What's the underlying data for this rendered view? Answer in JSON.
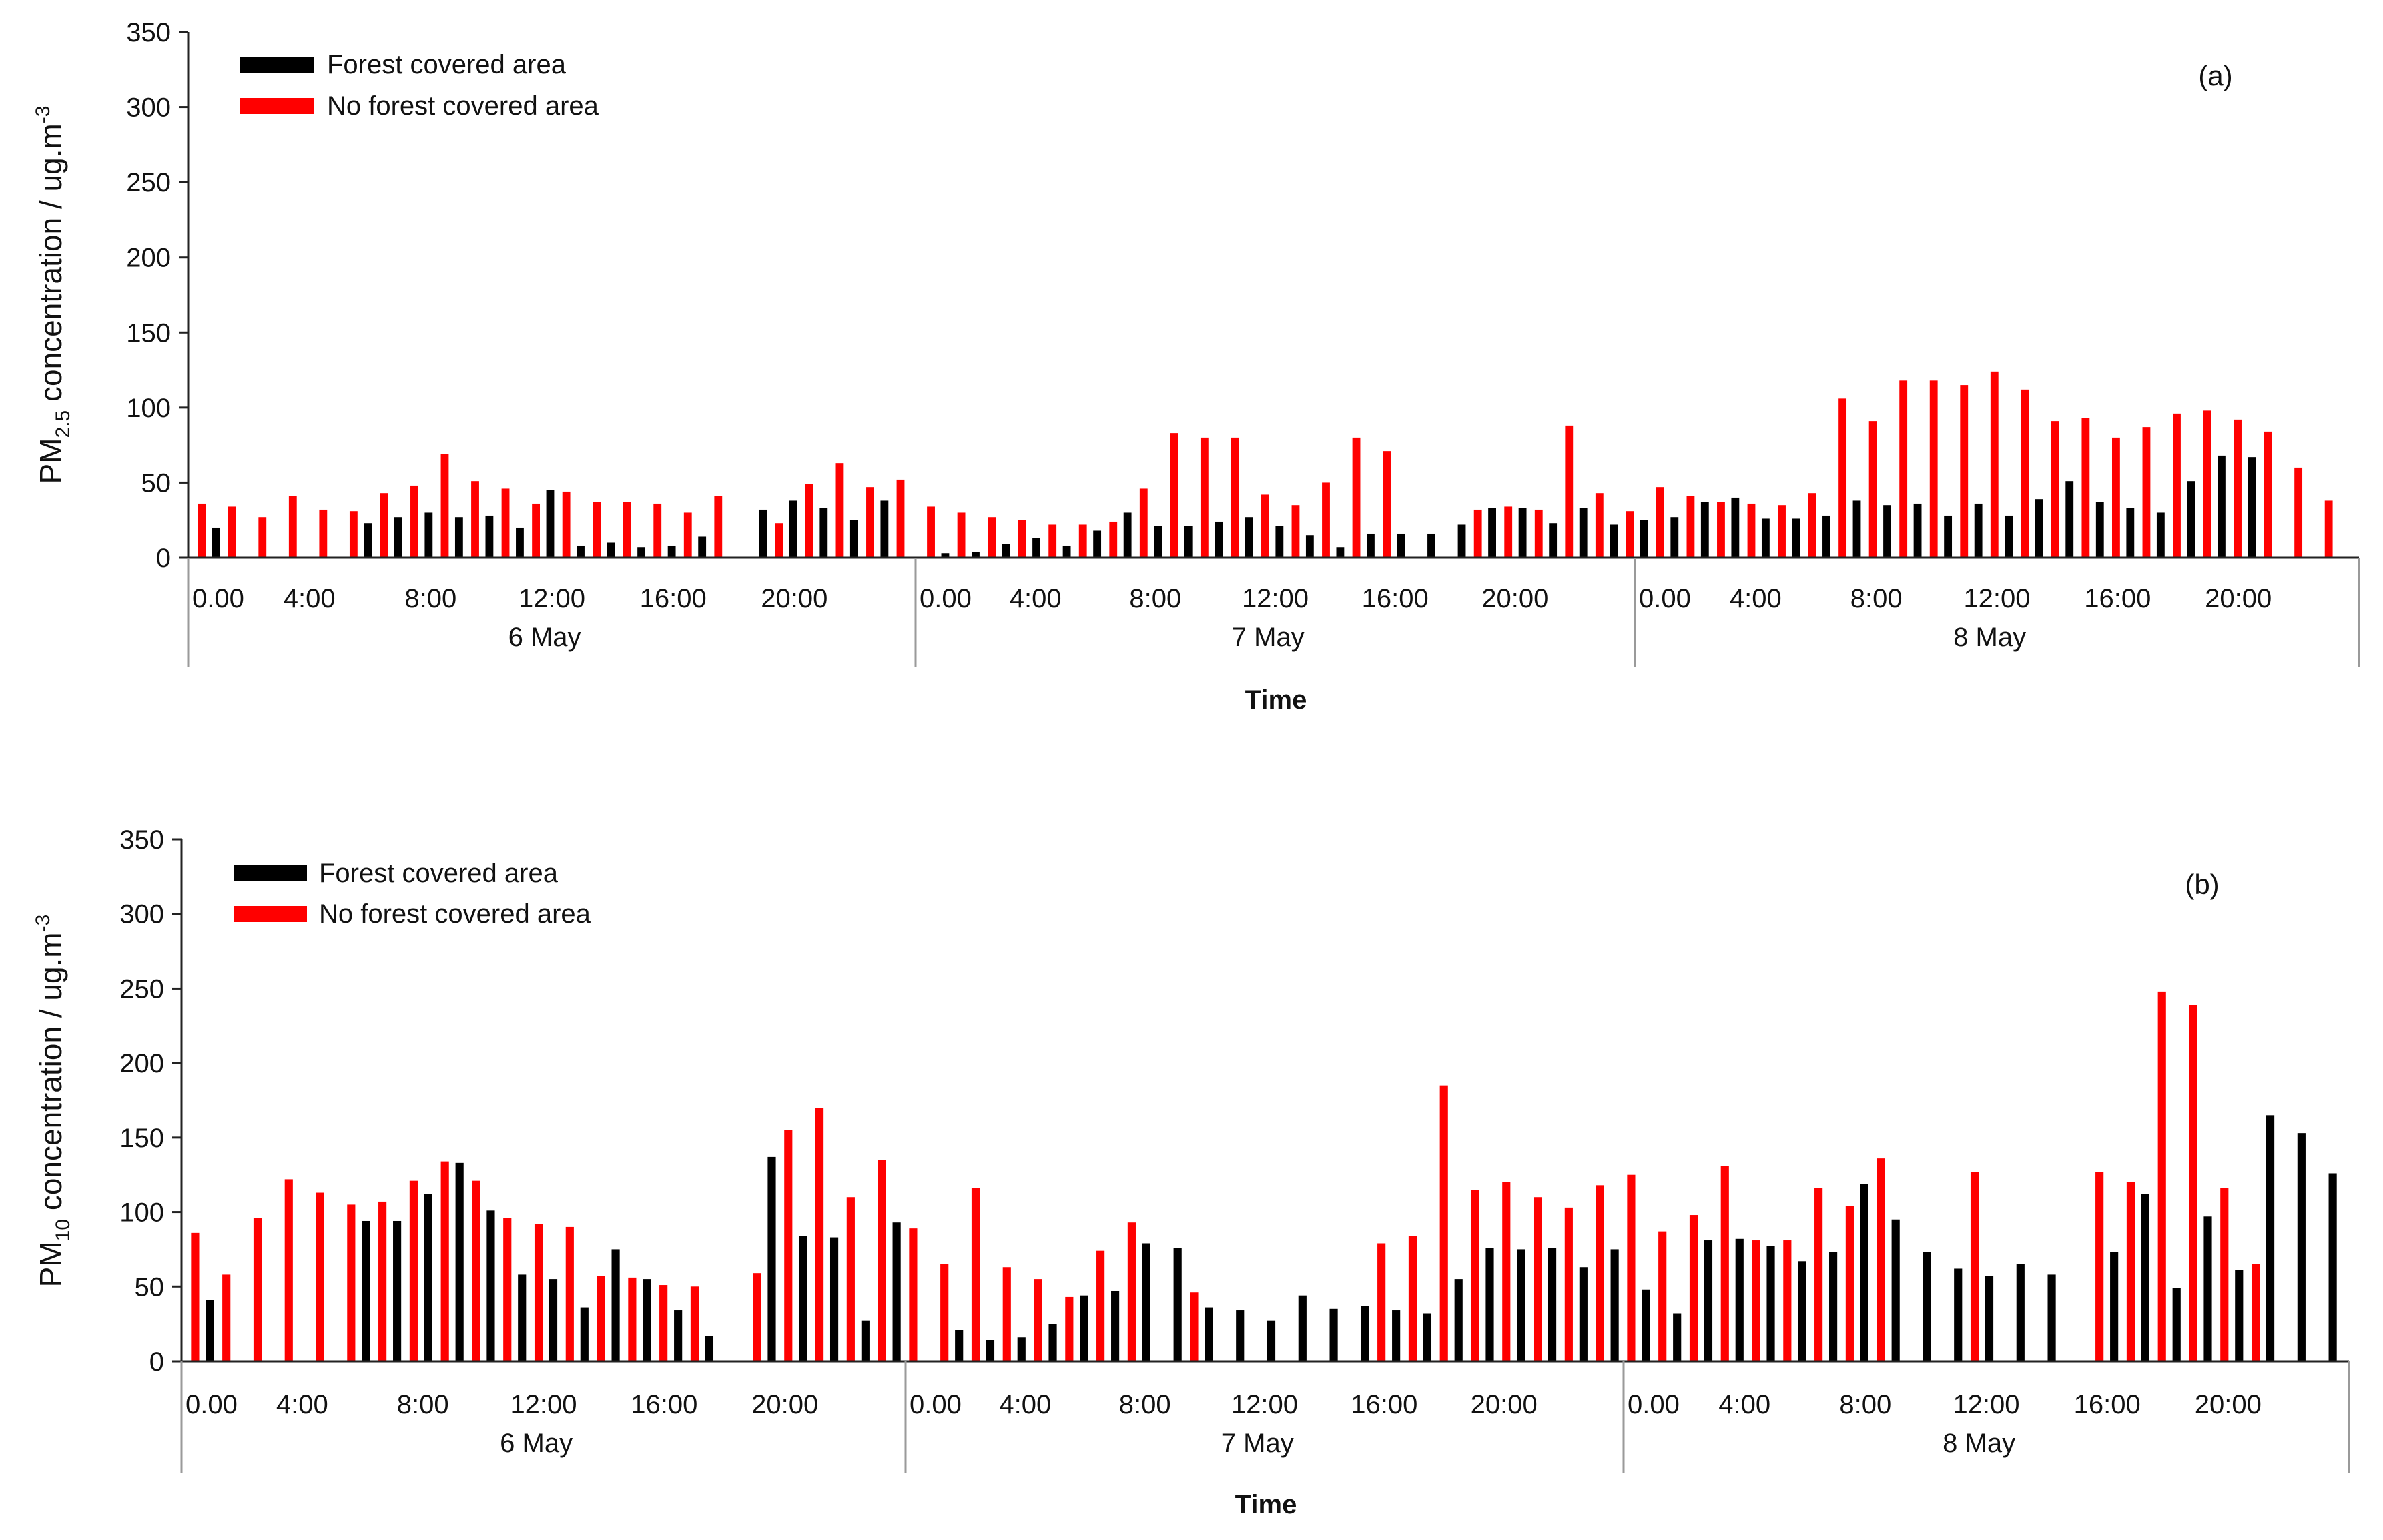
{
  "colors": {
    "forest": "#000000",
    "no_forest": "#ff0000",
    "axis": "#222222",
    "divider": "#b0b0b0"
  },
  "chart_data": [
    {
      "type": "bar",
      "panel": "(a)",
      "ylabel_prefix": "PM",
      "ylabel_sub": "2.5",
      "ylabel_suffix": " concentration / ug.m",
      "ylabel_sup": "-3",
      "xlabel": "Time",
      "ylim": [
        0,
        350
      ],
      "yticks": [
        "0",
        "50",
        "100",
        "150",
        "200",
        "250",
        "300",
        "350"
      ],
      "legend": [
        "Forest covered area",
        "No forest covered area"
      ],
      "days": [
        {
          "label": "6 May",
          "ticks": [
            "0.00",
            "4:00",
            "8:00",
            "12:00",
            "16:00",
            "20:00"
          ]
        },
        {
          "label": "7 May",
          "ticks": [
            "0.00",
            "4:00",
            "8:00",
            "12:00",
            "16:00",
            "20:00"
          ]
        },
        {
          "label": "8 May",
          "ticks": [
            "0.00",
            "4:00",
            "8:00",
            "12:00",
            "16:00",
            "20:00"
          ]
        }
      ],
      "series": [
        {
          "name": "Forest covered area",
          "values": [
            20,
            0,
            0,
            0,
            0,
            23,
            27,
            30,
            27,
            28,
            20,
            45,
            8,
            10,
            7,
            8,
            14,
            0,
            32,
            38,
            33,
            25,
            38,
            0,
            3,
            4,
            9,
            13,
            8,
            18,
            30,
            21,
            21,
            24,
            27,
            21,
            15,
            7,
            16,
            16,
            16,
            22,
            33,
            33,
            23,
            33,
            22,
            25,
            27,
            37,
            40,
            26,
            26,
            28,
            38,
            35,
            36,
            28,
            36,
            28,
            39,
            51,
            37,
            33,
            30,
            51,
            68,
            67
          ]
        },
        {
          "name": "No forest covered area",
          "values": [
            36,
            34,
            27,
            41,
            32,
            31,
            43,
            48,
            69,
            51,
            46,
            36,
            44,
            37,
            37,
            36,
            30,
            41,
            0,
            23,
            49,
            63,
            47,
            52,
            34,
            30,
            27,
            25,
            22,
            22,
            24,
            46,
            83,
            80,
            80,
            42,
            35,
            50,
            80,
            71,
            0,
            0,
            32,
            34,
            32,
            88,
            43,
            31,
            47,
            41,
            37,
            36,
            35,
            43,
            106,
            91,
            118,
            118,
            115,
            124,
            112,
            91,
            93,
            80,
            87,
            96,
            98,
            92,
            84,
            60,
            38
          ]
        }
      ]
    },
    {
      "type": "bar",
      "panel": "(b)",
      "ylabel_prefix": "PM",
      "ylabel_sub": "10",
      "ylabel_suffix": " concentration / ug.m",
      "ylabel_sup": "-3",
      "xlabel": "Time",
      "ylim": [
        0,
        350
      ],
      "yticks": [
        "0",
        "50",
        "100",
        "150",
        "200",
        "250",
        "300",
        "350"
      ],
      "legend": [
        "Forest covered area",
        "No forest covered area"
      ],
      "days": [
        {
          "label": "6 May",
          "ticks": [
            "0.00",
            "4:00",
            "8:00",
            "12:00",
            "16:00",
            "20:00"
          ]
        },
        {
          "label": "7 May",
          "ticks": [
            "0.00",
            "4:00",
            "8:00",
            "12:00",
            "16:00",
            "20:00"
          ]
        },
        {
          "label": "8 May",
          "ticks": [
            "0.00",
            "4:00",
            "8:00",
            "12:00",
            "16:00",
            "20:00"
          ]
        }
      ],
      "series": [
        {
          "name": "Forest covered area",
          "values": [
            41,
            0,
            0,
            0,
            0,
            94,
            94,
            112,
            133,
            101,
            58,
            55,
            36,
            75,
            55,
            34,
            17,
            0,
            137,
            84,
            83,
            27,
            93,
            0,
            21,
            14,
            16,
            25,
            44,
            47,
            79,
            76,
            36,
            34,
            27,
            44,
            35,
            37,
            34,
            32,
            55,
            76,
            75,
            76,
            63,
            75,
            48,
            32,
            81,
            82,
            77,
            67,
            73,
            119,
            95,
            73,
            62,
            57,
            65,
            58,
            0,
            73,
            112,
            49,
            97,
            61,
            165,
            153,
            126
          ]
        },
        {
          "name": "No forest covered area",
          "values": [
            86,
            58,
            96,
            122,
            113,
            105,
            107,
            121,
            134,
            121,
            96,
            92,
            90,
            57,
            56,
            51,
            50,
            0,
            59,
            155,
            170,
            110,
            135,
            89,
            65,
            116,
            63,
            55,
            43,
            74,
            93,
            0,
            46,
            0,
            0,
            0,
            0,
            0,
            79,
            84,
            185,
            115,
            120,
            110,
            103,
            118,
            125,
            87,
            98,
            131,
            81,
            81,
            116,
            104,
            136,
            0,
            0,
            127,
            0,
            0,
            0,
            127,
            120,
            248,
            239,
            116,
            65
          ]
        }
      ]
    }
  ]
}
